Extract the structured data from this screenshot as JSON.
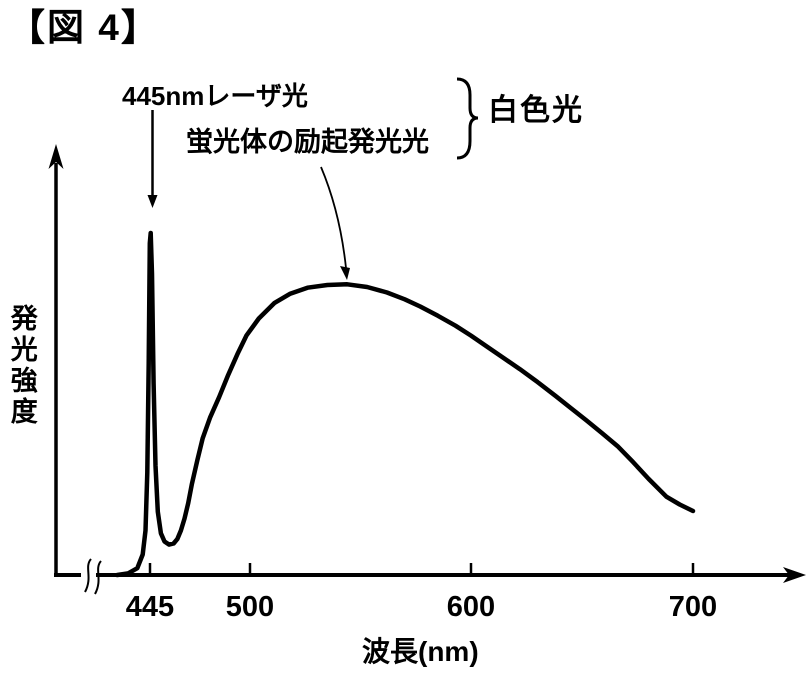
{
  "figure": {
    "title": "【図 4】"
  },
  "labels": {
    "laser": "445nmレーザ光",
    "phosphor": "蛍光体の励起発光光",
    "white_light": "白色光",
    "y_axis": "発光強度",
    "x_axis": "波長(nm)"
  },
  "colors": {
    "ink": "#000000",
    "background": "#ffffff"
  },
  "chart_data": {
    "type": "line",
    "title": "【図 4】",
    "xlabel": "波長(nm)",
    "ylabel": "発光強度",
    "x_ticks": [
      445,
      500,
      600,
      700
    ],
    "x_tick_labels": [
      "445",
      "500",
      "600",
      "700"
    ],
    "x_axis_break_before_nm": 445,
    "xlim": [
      425,
      705
    ],
    "ylim": [
      0,
      1.05
    ],
    "grid": false,
    "legend": "none",
    "annotations": [
      {
        "text": "445nmレーザ光",
        "points_at_nm": 445
      },
      {
        "text": "蛍光体の励起発光光",
        "points_at_nm": 544
      },
      {
        "text": "白色光",
        "brace_groups": [
          "445nmレーザ光",
          "蛍光体の励起発光光"
        ]
      }
    ],
    "series": [
      {
        "name": "白色光",
        "points_nm_intensity": [
          [
            427,
            0.0
          ],
          [
            433,
            0.005
          ],
          [
            438,
            0.02
          ],
          [
            441,
            0.06
          ],
          [
            442.5,
            0.13
          ],
          [
            443.5,
            0.3
          ],
          [
            444.3,
            0.62
          ],
          [
            444.9,
            0.97
          ],
          [
            445.4,
            1.0
          ],
          [
            446.1,
            0.88
          ],
          [
            447,
            0.56
          ],
          [
            448,
            0.32
          ],
          [
            449.3,
            0.185
          ],
          [
            451,
            0.122
          ],
          [
            453,
            0.098
          ],
          [
            455.5,
            0.089
          ],
          [
            458,
            0.092
          ],
          [
            460,
            0.105
          ],
          [
            462,
            0.13
          ],
          [
            464,
            0.165
          ],
          [
            466,
            0.21
          ],
          [
            468,
            0.265
          ],
          [
            471,
            0.335
          ],
          [
            474,
            0.4
          ],
          [
            478,
            0.46
          ],
          [
            483,
            0.52
          ],
          [
            488,
            0.585
          ],
          [
            493,
            0.645
          ],
          [
            498,
            0.7
          ],
          [
            504,
            0.75
          ],
          [
            511,
            0.795
          ],
          [
            518,
            0.822
          ],
          [
            526,
            0.84
          ],
          [
            535,
            0.848
          ],
          [
            544,
            0.85
          ],
          [
            553,
            0.842
          ],
          [
            562,
            0.826
          ],
          [
            570,
            0.806
          ],
          [
            577,
            0.785
          ],
          [
            585,
            0.758
          ],
          [
            593,
            0.729
          ],
          [
            600,
            0.7
          ],
          [
            608,
            0.664
          ],
          [
            615,
            0.633
          ],
          [
            622,
            0.602
          ],
          [
            630,
            0.564
          ],
          [
            638,
            0.524
          ],
          [
            645,
            0.488
          ],
          [
            652,
            0.452
          ],
          [
            659,
            0.415
          ],
          [
            666,
            0.377
          ],
          [
            673,
            0.33
          ],
          [
            680,
            0.281
          ],
          [
            688,
            0.229
          ],
          [
            694,
            0.206
          ],
          [
            700,
            0.187
          ]
        ]
      }
    ]
  }
}
